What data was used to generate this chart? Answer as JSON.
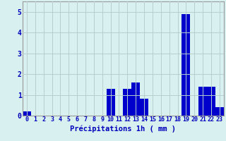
{
  "hours": [
    0,
    1,
    2,
    3,
    4,
    5,
    6,
    7,
    8,
    9,
    10,
    11,
    12,
    13,
    14,
    15,
    16,
    17,
    18,
    19,
    20,
    21,
    22,
    23
  ],
  "values": [
    0.2,
    0,
    0,
    0,
    0,
    0,
    0,
    0,
    0,
    0,
    1.3,
    0,
    1.3,
    1.6,
    0.8,
    0,
    0,
    0,
    0,
    4.9,
    0,
    1.4,
    1.4,
    0.4
  ],
  "bar_color": "#0000cc",
  "background_color": "#d8f0f0",
  "grid_color": "#b8cece",
  "axis_label_color": "#0000bb",
  "xlabel": "Précipitations 1h ( mm )",
  "ylim": [
    0,
    5.5
  ],
  "yticks": [
    0,
    1,
    2,
    3,
    4,
    5
  ],
  "xlabel_fontsize": 7.5,
  "tick_fontsize": 6.0
}
